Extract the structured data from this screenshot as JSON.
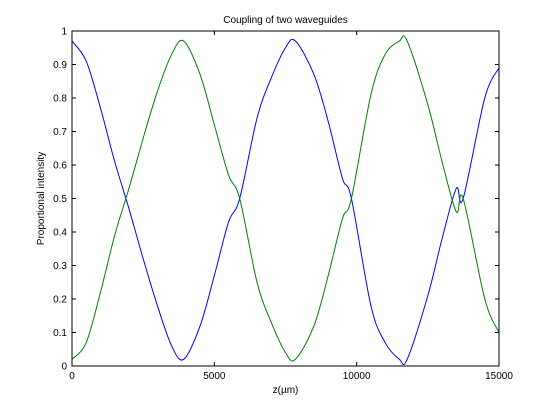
{
  "chart_data": {
    "type": "line",
    "title": "Coupling of two waveguides",
    "xlabel": "z(µm)",
    "ylabel": "Proportional intensity",
    "xlim": [
      0,
      15000
    ],
    "ylim": [
      0,
      1
    ],
    "x_ticks": [
      0,
      5000,
      10000,
      15000
    ],
    "x_tick_labels": [
      "0",
      "5000",
      "10000",
      "15000"
    ],
    "y_ticks": [
      0,
      0.1,
      0.2,
      0.3,
      0.4,
      0.5,
      0.6,
      0.7,
      0.8,
      0.9,
      1
    ],
    "y_tick_labels": [
      "0",
      "0.1",
      "0.2",
      "0.3",
      "0.4",
      "0.5",
      "0.6",
      "0.7",
      "0.8",
      "0.9",
      "1"
    ],
    "grid": false,
    "legend": false,
    "x": [
      0,
      500,
      1000,
      1500,
      2000,
      2500,
      3000,
      3500,
      3925,
      4500,
      5000,
      5500,
      5890,
      6500,
      7000,
      7500,
      7850,
      8500,
      9000,
      9500,
      9815,
      10500,
      11000,
      11500,
      11775,
      12500,
      13000,
      13500,
      13740,
      14500,
      15000
    ],
    "series": [
      {
        "color": "#0000ff",
        "values": [
          0.97,
          0.91,
          0.77,
          0.61,
          0.47,
          0.32,
          0.18,
          0.06,
          0.02,
          0.12,
          0.27,
          0.43,
          0.5,
          0.74,
          0.86,
          0.95,
          0.97,
          0.87,
          0.73,
          0.56,
          0.5,
          0.18,
          0.07,
          0.02,
          0.02,
          0.21,
          0.38,
          0.53,
          0.5,
          0.8,
          0.89
        ]
      },
      {
        "color": "#008000",
        "values": [
          0.02,
          0.07,
          0.22,
          0.39,
          0.53,
          0.68,
          0.82,
          0.93,
          0.97,
          0.87,
          0.72,
          0.57,
          0.5,
          0.25,
          0.13,
          0.04,
          0.02,
          0.12,
          0.27,
          0.44,
          0.5,
          0.81,
          0.93,
          0.97,
          0.97,
          0.78,
          0.61,
          0.46,
          0.5,
          0.2,
          0.1
        ]
      }
    ]
  }
}
